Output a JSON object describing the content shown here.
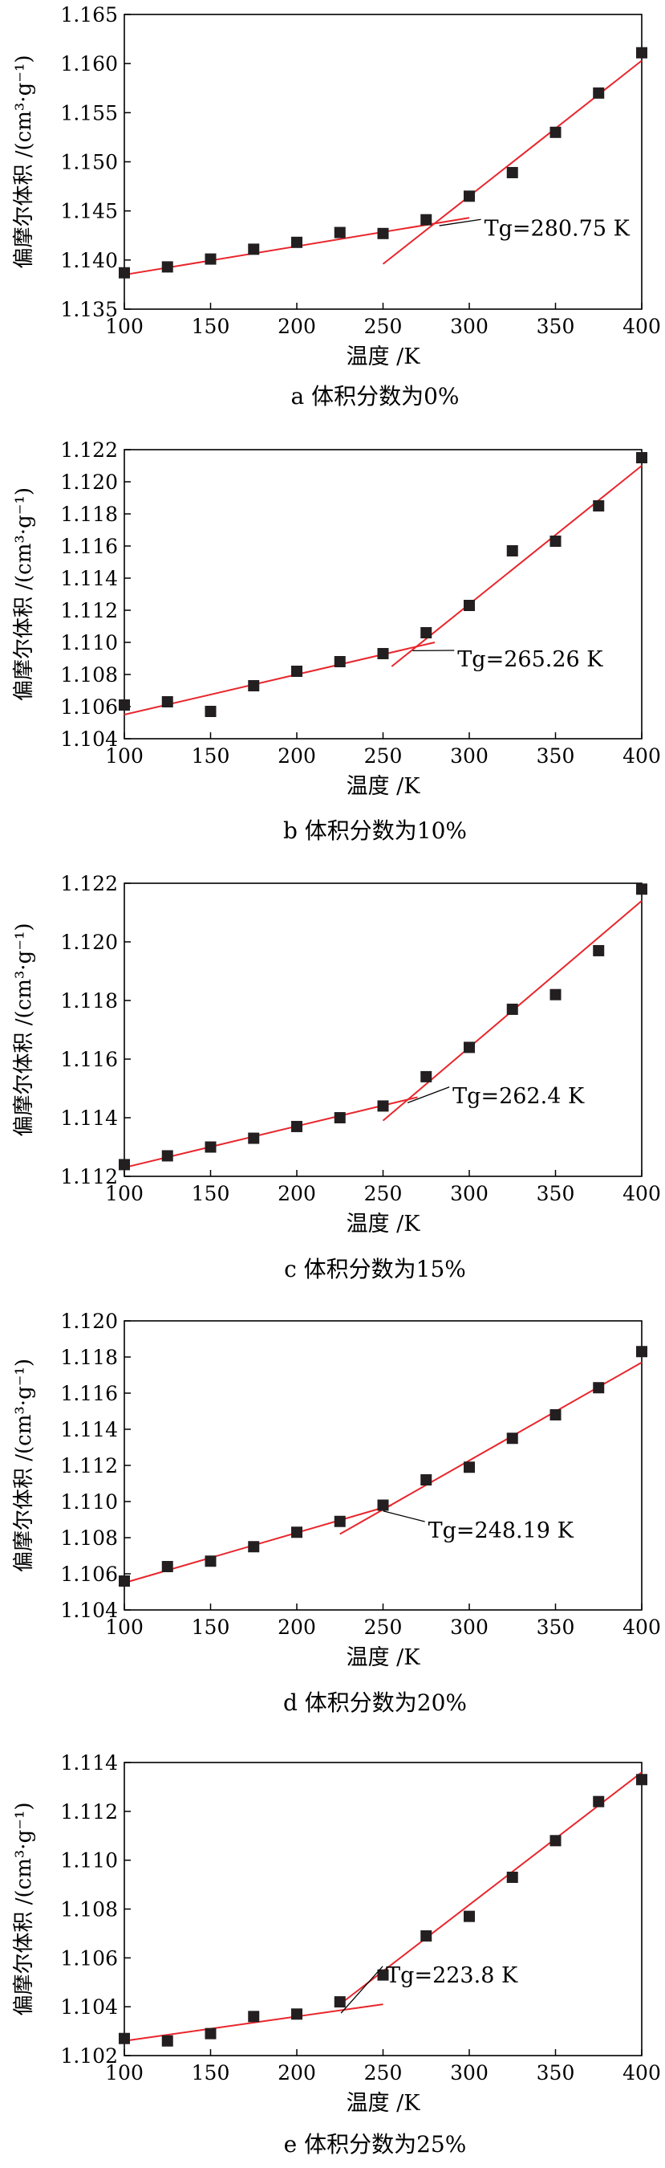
{
  "chart_data": [
    {
      "type": "scatter",
      "caption": "a 体积分数为0%",
      "xlabel": "温度 /K",
      "ylabel": "偏摩尔体积 /(cm³·g⁻¹)",
      "xlim": [
        100,
        400
      ],
      "ylim": [
        1.135,
        1.165
      ],
      "xticks": [
        "100",
        "150",
        "200",
        "250",
        "300",
        "350",
        "400"
      ],
      "yticks": [
        "1.135",
        "1.140",
        "1.145",
        "1.150",
        "1.155",
        "1.160",
        "1.165"
      ],
      "annotation": "Tg=280.75 K",
      "tg": 280.75,
      "grid": false,
      "marker_color": "#231f20",
      "fit_color": "#e8262c",
      "points": {
        "x": [
          100,
          125,
          150,
          175,
          200,
          225,
          250,
          275,
          300,
          325,
          350,
          375,
          400
        ],
        "y": [
          1.1387,
          1.1393,
          1.1401,
          1.1411,
          1.1418,
          1.1428,
          1.1427,
          1.1441,
          1.1465,
          1.1489,
          1.153,
          1.157,
          1.1611
        ]
      },
      "fit_lines": [
        {
          "x": [
            100,
            300
          ],
          "y": [
            1.1385,
            1.1443
          ]
        },
        {
          "x": [
            250,
            400
          ],
          "y": [
            1.1396,
            1.1603
          ]
        }
      ]
    },
    {
      "type": "scatter",
      "caption": "b 体积分数为10%",
      "xlabel": "温度 /K",
      "ylabel": "偏摩尔体积 /(cm³·g⁻¹)",
      "xlim": [
        100,
        400
      ],
      "ylim": [
        1.104,
        1.122
      ],
      "xticks": [
        "100",
        "150",
        "200",
        "250",
        "300",
        "350",
        "400"
      ],
      "yticks": [
        "1.104",
        "1.106",
        "1.108",
        "1.110",
        "1.112",
        "1.114",
        "1.116",
        "1.118",
        "1.120",
        "1.122"
      ],
      "annotation": "Tg=265.26 K",
      "tg": 265.26,
      "grid": false,
      "marker_color": "#231f20",
      "fit_color": "#e8262c",
      "points": {
        "x": [
          100,
          125,
          150,
          175,
          200,
          225,
          250,
          275,
          300,
          325,
          350,
          375,
          400
        ],
        "y": [
          1.1061,
          1.1063,
          1.1057,
          1.1073,
          1.1082,
          1.1088,
          1.1093,
          1.1106,
          1.1123,
          1.1157,
          1.1163,
          1.1185,
          1.1215
        ]
      },
      "fit_lines": [
        {
          "x": [
            100,
            280
          ],
          "y": [
            1.1055,
            1.11
          ]
        },
        {
          "x": [
            255,
            400
          ],
          "y": [
            1.1085,
            1.121
          ]
        }
      ]
    },
    {
      "type": "scatter",
      "caption": "c 体积分数为15%",
      "xlabel": "温度 /K",
      "ylabel": "偏摩尔体积 /(cm³·g⁻¹)",
      "xlim": [
        100,
        400
      ],
      "ylim": [
        1.112,
        1.122
      ],
      "xticks": [
        "100",
        "150",
        "200",
        "250",
        "300",
        "350",
        "400"
      ],
      "yticks": [
        "1.112",
        "1.114",
        "1.116",
        "1.118",
        "1.120",
        "1.122"
      ],
      "annotation": "Tg=262.4 K",
      "tg": 262.4,
      "grid": false,
      "marker_color": "#231f20",
      "fit_color": "#e8262c",
      "points": {
        "x": [
          100,
          125,
          150,
          175,
          200,
          225,
          250,
          275,
          300,
          325,
          350,
          375,
          400
        ],
        "y": [
          1.1124,
          1.1127,
          1.113,
          1.1133,
          1.1137,
          1.114,
          1.1144,
          1.1154,
          1.1164,
          1.1177,
          1.1182,
          1.1197,
          1.1218
        ]
      },
      "fit_lines": [
        {
          "x": [
            100,
            270
          ],
          "y": [
            1.1123,
            1.1147
          ]
        },
        {
          "x": [
            250,
            400
          ],
          "y": [
            1.1139,
            1.1214
          ]
        }
      ]
    },
    {
      "type": "scatter",
      "caption": "d 体积分数为20%",
      "xlabel": "温度 /K",
      "ylabel": "偏摩尔体积 /(cm³·g⁻¹)",
      "xlim": [
        100,
        400
      ],
      "ylim": [
        1.104,
        1.12
      ],
      "xticks": [
        "100",
        "150",
        "200",
        "250",
        "300",
        "350",
        "400"
      ],
      "yticks": [
        "1.104",
        "1.106",
        "1.108",
        "1.110",
        "1.112",
        "1.114",
        "1.116",
        "1.118",
        "1.120"
      ],
      "annotation": "Tg=248.19 K",
      "tg": 248.19,
      "grid": false,
      "marker_color": "#231f20",
      "fit_color": "#e8262c",
      "points": {
        "x": [
          100,
          125,
          150,
          175,
          200,
          225,
          250,
          275,
          300,
          325,
          350,
          375,
          400
        ],
        "y": [
          1.1056,
          1.1064,
          1.1067,
          1.1075,
          1.1083,
          1.1089,
          1.1098,
          1.1112,
          1.1119,
          1.1135,
          1.1148,
          1.1163,
          1.1183
        ]
      },
      "fit_lines": [
        {
          "x": [
            100,
            255
          ],
          "y": [
            1.1055,
            1.1098
          ]
        },
        {
          "x": [
            225,
            400
          ],
          "y": [
            1.1082,
            1.1177
          ]
        }
      ]
    },
    {
      "type": "scatter",
      "caption": "e 体积分数为25%",
      "xlabel": "温度 /K",
      "ylabel": "偏摩尔体积 /(cm³·g⁻¹)",
      "xlim": [
        100,
        400
      ],
      "ylim": [
        1.102,
        1.114
      ],
      "xticks": [
        "100",
        "150",
        "200",
        "250",
        "300",
        "350",
        "400"
      ],
      "yticks": [
        "1.102",
        "1.104",
        "1.106",
        "1.108",
        "1.110",
        "1.112",
        "1.114"
      ],
      "annotation": "Tg=223.8 K",
      "tg": 223.8,
      "grid": false,
      "marker_color": "#231f20",
      "fit_color": "#e8262c",
      "points": {
        "x": [
          100,
          125,
          150,
          175,
          200,
          225,
          250,
          275,
          300,
          325,
          350,
          375,
          400
        ],
        "y": [
          1.1027,
          1.1026,
          1.1029,
          1.1036,
          1.1037,
          1.1042,
          1.1053,
          1.1069,
          1.1077,
          1.1093,
          1.1108,
          1.1124,
          1.1133
        ]
      },
      "fit_lines": [
        {
          "x": [
            100,
            250
          ],
          "y": [
            1.1026,
            1.1041
          ]
        },
        {
          "x": [
            225,
            400
          ],
          "y": [
            1.1041,
            1.1136
          ]
        }
      ]
    }
  ]
}
